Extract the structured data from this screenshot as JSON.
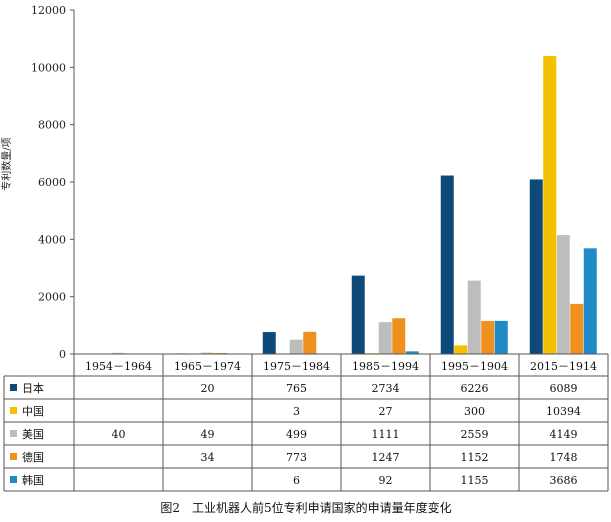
{
  "chart_data": {
    "type": "bar",
    "title": "",
    "caption": "图2　工业机器人前5位专利申请国家的申请量年度变化",
    "ylabel": "专利数量/项",
    "xlabel": "",
    "ylim": [
      0,
      12000
    ],
    "yticks": [
      "0",
      "2000",
      "4000",
      "6000",
      "8000",
      "10000",
      "12000"
    ],
    "ytick_values": [
      0,
      2000,
      4000,
      6000,
      8000,
      10000,
      12000
    ],
    "grid": false,
    "legend_placement": "table-left",
    "categories": [
      "1954－1964",
      "1965－1974",
      "1975－1984",
      "1985－1994",
      "1995－1904",
      "2015－1914"
    ],
    "series": [
      {
        "name": "日本",
        "color": "#0d4a7a",
        "values": [
          null,
          20,
          765,
          2734,
          6226,
          6089
        ],
        "labels": [
          "",
          "20",
          "765",
          "2734",
          "6226",
          "6089"
        ]
      },
      {
        "name": "中国",
        "color": "#f5c000",
        "values": [
          null,
          null,
          3,
          27,
          300,
          10394
        ],
        "labels": [
          "",
          "",
          "3",
          "27",
          "300",
          "10394"
        ]
      },
      {
        "name": "美国",
        "color": "#bdbdbd",
        "values": [
          40,
          49,
          499,
          1111,
          2559,
          4149
        ],
        "labels": [
          "40",
          "49",
          "499",
          "1111",
          "2559",
          "4149"
        ]
      },
      {
        "name": "德国",
        "color": "#f0901e",
        "values": [
          null,
          34,
          773,
          1247,
          1152,
          1748
        ],
        "labels": [
          "",
          "34",
          "773",
          "1247",
          "1152",
          "1748"
        ]
      },
      {
        "name": "韩国",
        "color": "#1f8ac8",
        "values": [
          null,
          null,
          6,
          92,
          1155,
          3686
        ],
        "labels": [
          "",
          "",
          "6",
          "92",
          "1155",
          "3686"
        ]
      }
    ]
  }
}
